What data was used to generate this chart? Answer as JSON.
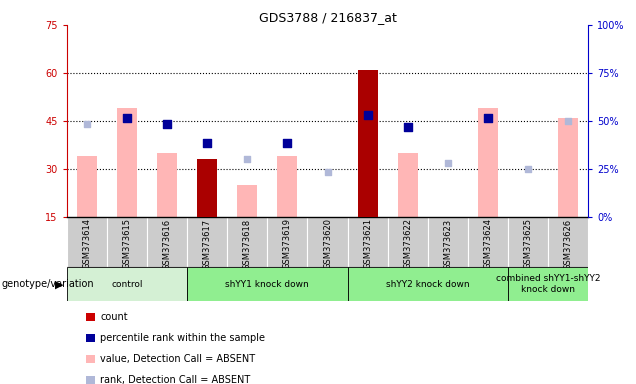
{
  "title": "GDS3788 / 216837_at",
  "samples": [
    "GSM373614",
    "GSM373615",
    "GSM373616",
    "GSM373617",
    "GSM373618",
    "GSM373619",
    "GSM373620",
    "GSM373621",
    "GSM373622",
    "GSM373623",
    "GSM373624",
    "GSM373625",
    "GSM373626"
  ],
  "pink_bars": [
    34,
    49,
    35,
    null,
    25,
    34,
    null,
    null,
    35,
    null,
    49,
    null,
    46
  ],
  "dark_red_bars": [
    null,
    null,
    null,
    33,
    null,
    null,
    null,
    61,
    null,
    null,
    null,
    null,
    null
  ],
  "blue_squares": [
    null,
    46,
    44,
    38,
    null,
    38,
    null,
    47,
    43,
    null,
    46,
    null,
    null
  ],
  "light_blue_squares": [
    44,
    null,
    null,
    null,
    33,
    null,
    29,
    null,
    null,
    32,
    null,
    30,
    45
  ],
  "ylim_left": [
    15,
    75
  ],
  "ylim_right": [
    0,
    100
  ],
  "yticks_left": [
    15,
    30,
    45,
    60,
    75
  ],
  "yticks_right": [
    0,
    25,
    50,
    75,
    100
  ],
  "hlines": [
    30,
    45,
    60
  ],
  "groups": [
    {
      "label": "control",
      "start": 0,
      "end": 3,
      "color": "#d4f0d4"
    },
    {
      "label": "shYY1 knock down",
      "start": 3,
      "end": 7,
      "color": "#90ee90"
    },
    {
      "label": "shYY2 knock down",
      "start": 7,
      "end": 11,
      "color": "#90ee90"
    },
    {
      "label": "combined shYY1-shYY2\nknock down",
      "start": 11,
      "end": 13,
      "color": "#90ee90"
    }
  ],
  "legend_items": [
    {
      "color": "#cc0000",
      "label": "count"
    },
    {
      "color": "#000099",
      "label": "percentile rank within the sample"
    },
    {
      "color": "#ffb6b6",
      "label": "value, Detection Call = ABSENT"
    },
    {
      "color": "#b0b8d8",
      "label": "rank, Detection Call = ABSENT"
    }
  ],
  "left_axis_color": "#cc0000",
  "right_axis_color": "#0000cc",
  "pink_bar_width": 0.5,
  "dark_red_bar_width": 0.5,
  "blue_sq_size": 28,
  "light_blue_sq_size": 22
}
